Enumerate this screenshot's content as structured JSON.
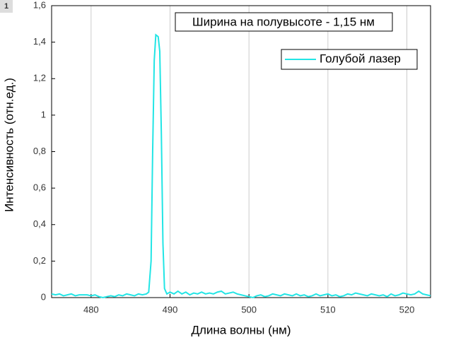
{
  "chart_data": {
    "type": "line",
    "layer_label": "1",
    "annotation": "Ширина на полувысоте - 1,15 нм",
    "xlabel": "Длина волны (нм)",
    "ylabel": "Интенсивность (отн.ед.)",
    "x": [
      475,
      475.5,
      476,
      476.5,
      477,
      477.5,
      478,
      478.5,
      479,
      479.5,
      480,
      480.5,
      481,
      481.5,
      482,
      482.5,
      483,
      483.5,
      484,
      484.5,
      485,
      485.5,
      486,
      486.5,
      487,
      487.3,
      487.6,
      487.8,
      488.0,
      488.2,
      488.5,
      488.7,
      488.9,
      489.1,
      489.3,
      489.6,
      490,
      490.5,
      491,
      491.5,
      492,
      492.5,
      493,
      493.5,
      494,
      494.5,
      495,
      495.5,
      496,
      496.5,
      497,
      497.5,
      498,
      498.5,
      499,
      499.5,
      500,
      500.5,
      501,
      501.5,
      502,
      502.5,
      503,
      503.5,
      504,
      504.5,
      505,
      505.5,
      506,
      506.5,
      507,
      507.5,
      508,
      508.5,
      509,
      509.5,
      510,
      510.5,
      511,
      511.5,
      512,
      512.5,
      513,
      513.5,
      514,
      514.5,
      515,
      515.5,
      516,
      516.5,
      517,
      517.5,
      518,
      518.5,
      519,
      519.5,
      520,
      520.5,
      521,
      521.5,
      522,
      522.5,
      523
    ],
    "series": [
      {
        "name": "Голубой лазер",
        "color": "#22e5e5",
        "values": [
          0.02,
          0.015,
          0.02,
          0.01,
          0.015,
          0.02,
          0.01,
          0.015,
          0.015,
          0.015,
          0.01,
          0.015,
          0.005,
          0,
          0.005,
          0.01,
          0.005,
          0.015,
          0.01,
          0.02,
          0.015,
          0.01,
          0.02,
          0.015,
          0.02,
          0.03,
          0.2,
          0.8,
          1.3,
          1.44,
          1.43,
          1.35,
          0.9,
          0.3,
          0.05,
          0.02,
          0.03,
          0.02,
          0.035,
          0.02,
          0.03,
          0.015,
          0.025,
          0.02,
          0.03,
          0.02,
          0.025,
          0.02,
          0.03,
          0.035,
          0.02,
          0.025,
          0.03,
          0.02,
          0.015,
          0.01,
          0.005,
          0,
          0.01,
          0.015,
          0.005,
          0.01,
          0.02,
          0.015,
          0.01,
          0.02,
          0.015,
          0.01,
          0.02,
          0.01,
          0.015,
          0.005,
          0.01,
          0.02,
          0.01,
          0.015,
          0.02,
          0.01,
          0.015,
          0.005,
          0.01,
          0.02,
          0.015,
          0.025,
          0.02,
          0.015,
          0.01,
          0.02,
          0.015,
          0.01,
          0.015,
          0.005,
          0.02,
          0.01,
          0.015,
          0.025,
          0.02,
          0.015,
          0.02,
          0.035,
          0.02,
          0.015,
          0.01
        ]
      }
    ],
    "xlim": [
      475,
      523
    ],
    "xticks": [
      480,
      490,
      500,
      510,
      520
    ],
    "ylim": [
      0,
      1.6
    ],
    "yticks": [
      0,
      {
        "value": 0.2,
        "label": "0,2"
      },
      {
        "value": 0.4,
        "label": "0,4"
      },
      {
        "value": 0.6,
        "label": "0,6"
      },
      {
        "value": 0.8,
        "label": "0,8"
      },
      1,
      {
        "value": 1.2,
        "label": "1,2"
      },
      {
        "value": 1.4,
        "label": "1,4"
      },
      {
        "value": 1.6,
        "label": "1,6"
      }
    ],
    "grid": "x",
    "legend": "upper right"
  }
}
